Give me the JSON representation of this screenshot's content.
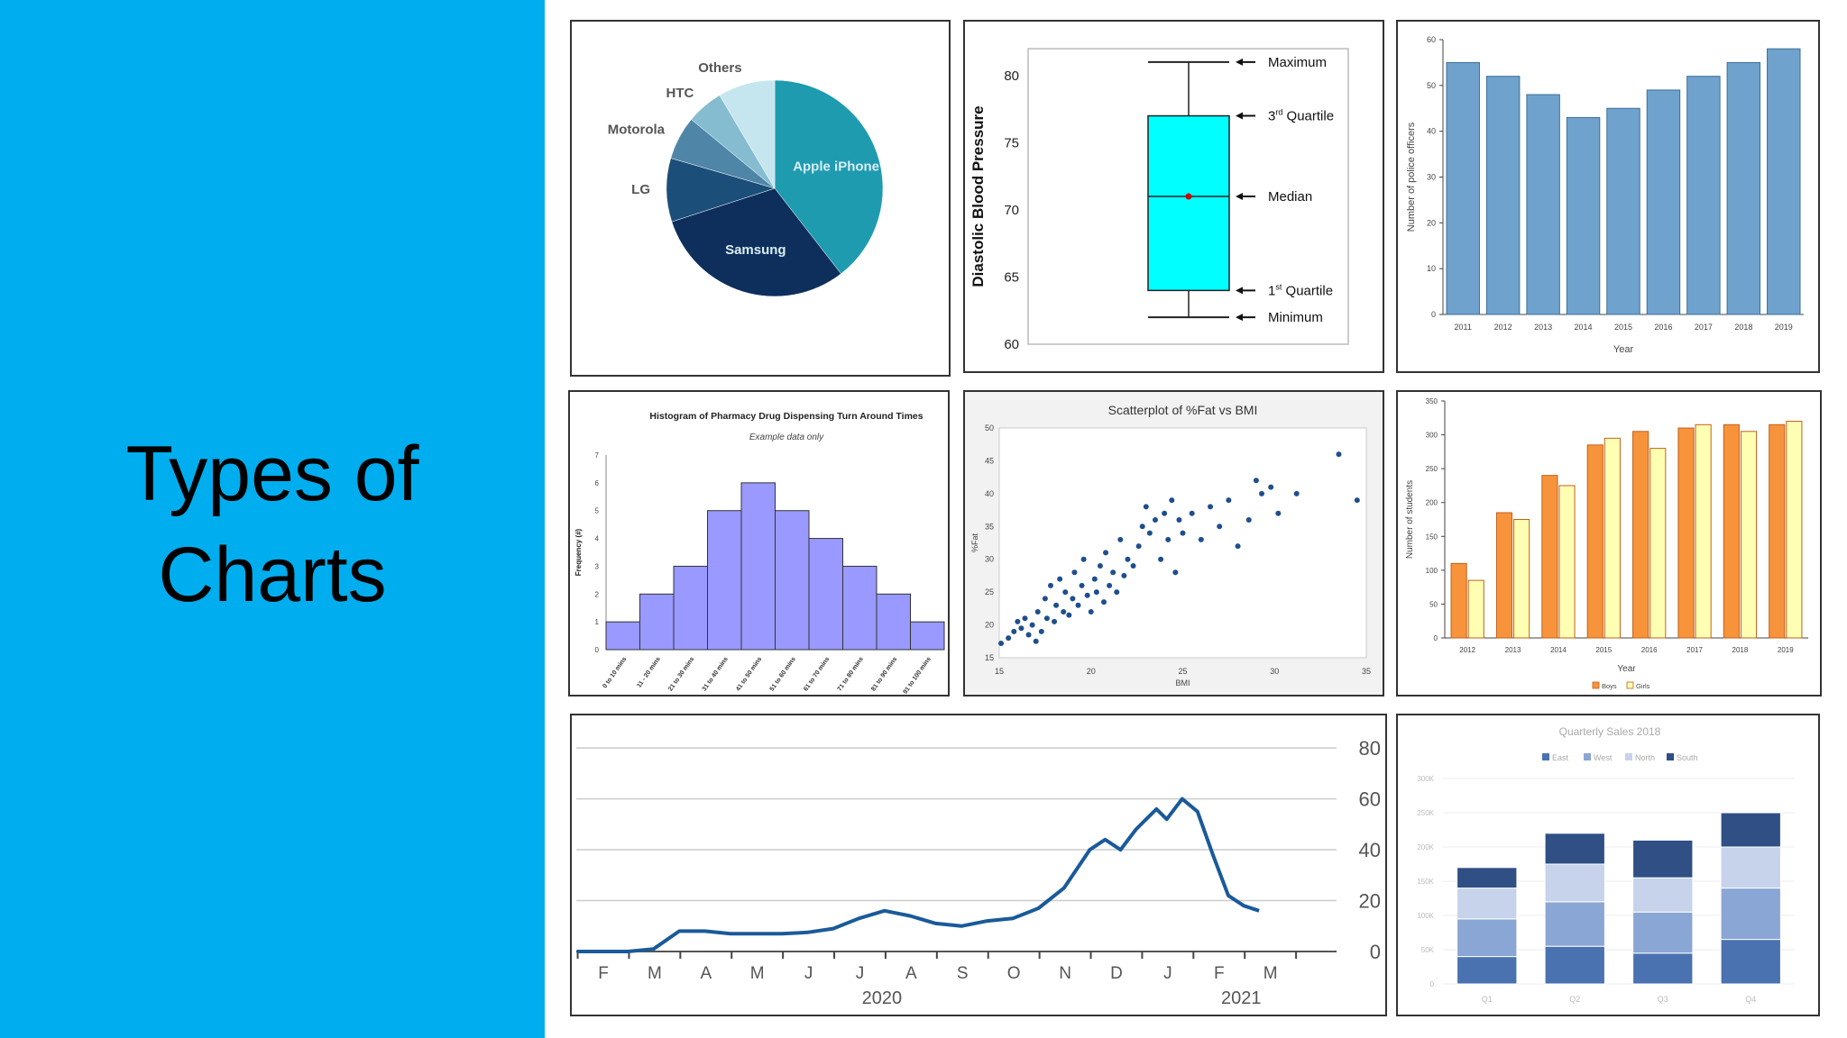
{
  "slide": {
    "title_line1": "Types of",
    "title_line2": "Charts",
    "background": "#00aeef"
  },
  "chart_data": [
    {
      "type": "pie",
      "labels": [
        "Apple iPhone",
        "Samsung",
        "LG",
        "Motorola",
        "HTC",
        "Others"
      ],
      "values": [
        39.5,
        30.5,
        9.5,
        6.5,
        5.5,
        8.5
      ],
      "colors": [
        "#1f9bb0",
        "#0e2f5c",
        "#1b4e78",
        "#4f86a8",
        "#86bcd0",
        "#c5e6ee"
      ]
    },
    {
      "type": "box",
      "ylabel": "Diastolic Blood Pressure",
      "yticks": [
        60,
        65,
        70,
        75,
        80
      ],
      "ylim": [
        60,
        82
      ],
      "minimum": 62,
      "q1": 64,
      "median": 71,
      "q3": 77,
      "maximum": 81,
      "annotations": {
        "maximum": "Maximum",
        "q3_main": "3",
        "q3_sup": "rd",
        "q3_rest": " Quartile",
        "median": "Median",
        "q1_main": "1",
        "q1_sup": "st",
        "q1_rest": " Quartile",
        "minimum": "Minimum"
      },
      "color": "#00ffff"
    },
    {
      "type": "bar",
      "categories": [
        "2011",
        "2012",
        "2013",
        "2014",
        "2015",
        "2016",
        "2017",
        "2018",
        "2019"
      ],
      "values": [
        55,
        52,
        48,
        43,
        45,
        49,
        52,
        55,
        58
      ],
      "xlabel": "Year",
      "ylabel": "Number of police officers",
      "ylim": [
        0,
        60
      ],
      "yticks": [
        0,
        10,
        20,
        30,
        40,
        50,
        60
      ],
      "color": "#6fa2cc"
    },
    {
      "type": "bar",
      "title": "Histogram of Pharmacy Drug Dispensing Turn Around Times",
      "subtitle": "Example data only",
      "ylabel": "Frequency (#)",
      "categories": [
        "0 to 10 mins",
        "11 - 20 mins",
        "21 to 30 mins",
        "31 to 40 mins",
        "41 to 50 mins",
        "51 to 60 mins",
        "61 to 70 mins",
        "71 to 80 mins",
        "81 to 90 mins",
        "91 to 100 mins"
      ],
      "values": [
        1,
        2,
        3,
        5,
        6,
        5,
        4,
        3,
        2,
        1
      ],
      "ylim": [
        0,
        7
      ],
      "yticks": [
        0,
        1,
        2,
        3,
        4,
        5,
        6,
        7
      ],
      "color": "#9999ff"
    },
    {
      "type": "scatter",
      "title": "Scatterplot of %Fat vs BMI",
      "xlabel": "BMI",
      "ylabel": "%Fat",
      "xlim": [
        15,
        35
      ],
      "ylim": [
        15,
        50
      ],
      "xticks": [
        15,
        20,
        25,
        30,
        35
      ],
      "yticks": [
        15,
        20,
        25,
        30,
        35,
        40,
        45,
        50
      ],
      "points": [
        [
          15.1,
          17.2
        ],
        [
          15.5,
          18
        ],
        [
          15.8,
          19
        ],
        [
          16,
          20.5
        ],
        [
          16.2,
          19.5
        ],
        [
          16.4,
          21
        ],
        [
          16.6,
          18.5
        ],
        [
          16.8,
          20
        ],
        [
          17,
          17.5
        ],
        [
          17.1,
          22
        ],
        [
          17.3,
          19
        ],
        [
          17.5,
          24
        ],
        [
          17.6,
          21
        ],
        [
          17.8,
          26
        ],
        [
          18,
          20.5
        ],
        [
          18.1,
          23
        ],
        [
          18.3,
          27
        ],
        [
          18.5,
          22
        ],
        [
          18.6,
          25
        ],
        [
          18.8,
          21.5
        ],
        [
          19,
          24
        ],
        [
          19.1,
          28
        ],
        [
          19.3,
          23
        ],
        [
          19.5,
          26
        ],
        [
          19.6,
          30
        ],
        [
          19.8,
          24.5
        ],
        [
          20,
          22
        ],
        [
          20.2,
          27
        ],
        [
          20.3,
          25
        ],
        [
          20.5,
          29
        ],
        [
          20.7,
          23.5
        ],
        [
          20.8,
          31
        ],
        [
          21,
          26
        ],
        [
          21.2,
          28
        ],
        [
          21.4,
          25
        ],
        [
          21.6,
          33
        ],
        [
          21.8,
          27.5
        ],
        [
          22,
          30
        ],
        [
          22.3,
          29
        ],
        [
          22.6,
          32
        ],
        [
          22.8,
          35
        ],
        [
          23,
          38
        ],
        [
          23.2,
          34
        ],
        [
          23.5,
          36
        ],
        [
          23.8,
          30
        ],
        [
          24,
          37
        ],
        [
          24.2,
          33
        ],
        [
          24.4,
          39
        ],
        [
          24.6,
          28
        ],
        [
          24.8,
          36
        ],
        [
          25,
          34
        ],
        [
          25.5,
          37
        ],
        [
          26,
          33
        ],
        [
          26.5,
          38
        ],
        [
          27,
          35
        ],
        [
          27.5,
          39
        ],
        [
          28,
          32
        ],
        [
          28.6,
          36
        ],
        [
          29,
          42
        ],
        [
          29.3,
          40
        ],
        [
          29.8,
          41
        ],
        [
          30.2,
          37
        ],
        [
          31.2,
          40
        ],
        [
          33.5,
          46
        ],
        [
          34.5,
          39
        ]
      ],
      "color": "#1f4e8c"
    },
    {
      "type": "bar",
      "categories": [
        "2012",
        "2013",
        "2014",
        "2015",
        "2016",
        "2017",
        "2018",
        "2019"
      ],
      "series": [
        {
          "name": "Boys",
          "values": [
            110,
            185,
            240,
            285,
            305,
            310,
            315,
            315
          ],
          "color": "#f7943b"
        },
        {
          "name": "Girls",
          "values": [
            85,
            175,
            225,
            295,
            280,
            315,
            305,
            320
          ],
          "color": "#ffffb3"
        }
      ],
      "xlabel": "Year",
      "ylabel": "Number of students",
      "ylim": [
        0,
        350
      ],
      "yticks": [
        0,
        50,
        100,
        150,
        200,
        250,
        300,
        350
      ]
    },
    {
      "type": "line",
      "months": [
        "F",
        "M",
        "A",
        "M",
        "J",
        "J",
        "A",
        "S",
        "O",
        "N",
        "D",
        "J",
        "F",
        "M"
      ],
      "years": [
        {
          "label": "2020",
          "month_index": 5.5
        },
        {
          "label": "2021",
          "month_index": 12.5
        }
      ],
      "yticks": [
        0,
        20,
        40,
        60,
        80
      ],
      "ylim": [
        0,
        85
      ],
      "x": [
        0,
        0.5,
        1,
        1.5,
        2,
        2.5,
        3,
        3.5,
        4,
        4.5,
        5,
        5.5,
        6,
        6.5,
        7,
        7.5,
        8,
        8.5,
        9,
        9.5,
        10,
        10.3,
        10.6,
        10.9,
        11.1,
        11.3,
        11.5,
        11.8,
        12.1,
        12.4,
        12.7,
        13,
        13.3
      ],
      "y": [
        0,
        0,
        0,
        1,
        8,
        8,
        7,
        7,
        7,
        7.5,
        9,
        13,
        16,
        14,
        11,
        10,
        12,
        13,
        17,
        25,
        40,
        44,
        40,
        48,
        52,
        56,
        52,
        60,
        55,
        38,
        22,
        18,
        16
      ],
      "color": "#1a5a9a"
    },
    {
      "type": "bar",
      "title": "Quarterly Sales 2018",
      "legend": [
        "East",
        "West",
        "North",
        "South"
      ],
      "categories": [
        "Q1",
        "Q2",
        "Q3",
        "Q4"
      ],
      "series": [
        {
          "name": "East",
          "values": [
            40,
            55,
            45,
            65
          ],
          "color": "#4a72b0"
        },
        {
          "name": "West",
          "values": [
            55,
            65,
            60,
            75
          ],
          "color": "#8aa6d4"
        },
        {
          "name": "North",
          "values": [
            45,
            55,
            50,
            60
          ],
          "color": "#c6d3ea"
        },
        {
          "name": "South",
          "values": [
            30,
            45,
            55,
            50
          ],
          "color": "#2f4f85"
        }
      ],
      "yticks_labels": [
        "0",
        "50K",
        "100K",
        "150K",
        "200K",
        "250K",
        "300K"
      ],
      "ylim": [
        0,
        300
      ]
    }
  ]
}
